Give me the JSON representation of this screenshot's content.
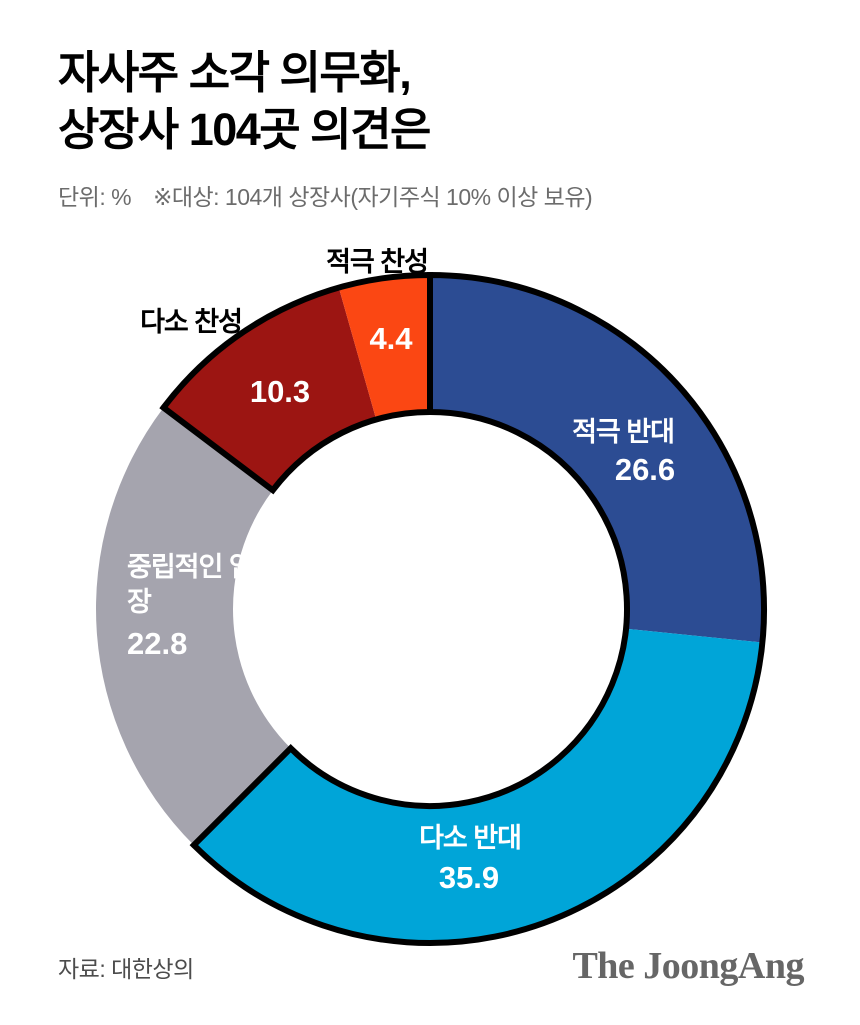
{
  "header": {
    "title_line1": "자사주 소각 의무화,",
    "title_line2": "상장사 104곳 의견은",
    "unit_label": "단위: %",
    "note": "※대상: 104개 상장사(자기주식 10% 이상 보유)"
  },
  "chart_data": {
    "type": "pie",
    "subtype": "donut",
    "title": "자사주 소각 의무화, 상장사 104곳 의견은",
    "unit": "%",
    "sample_note": "※대상: 104개 상장사(자기주식 10% 이상 보유)",
    "direction": "clockwise",
    "start_angle_deg": 0,
    "inner_radius_ratio": 0.59,
    "outline_color": "#000000",
    "outlined_groups": [
      [
        0,
        1
      ],
      [
        3,
        4
      ]
    ],
    "segments": [
      {
        "label": "적극 반대",
        "value": 26.6,
        "color": "#2C4C93"
      },
      {
        "label": "다소 반대",
        "value": 35.9,
        "color": "#00A5D8"
      },
      {
        "label": "중립적인 입장",
        "value": 22.8,
        "color": "#A5A4AE"
      },
      {
        "label": "다소 찬성",
        "value": 10.3,
        "color": "#9C1512"
      },
      {
        "label": "적극 찬성",
        "value": 4.4,
        "color": "#FB4713"
      }
    ]
  },
  "footer": {
    "source": "자료: 대한상의",
    "logo": "The JoongAng"
  }
}
